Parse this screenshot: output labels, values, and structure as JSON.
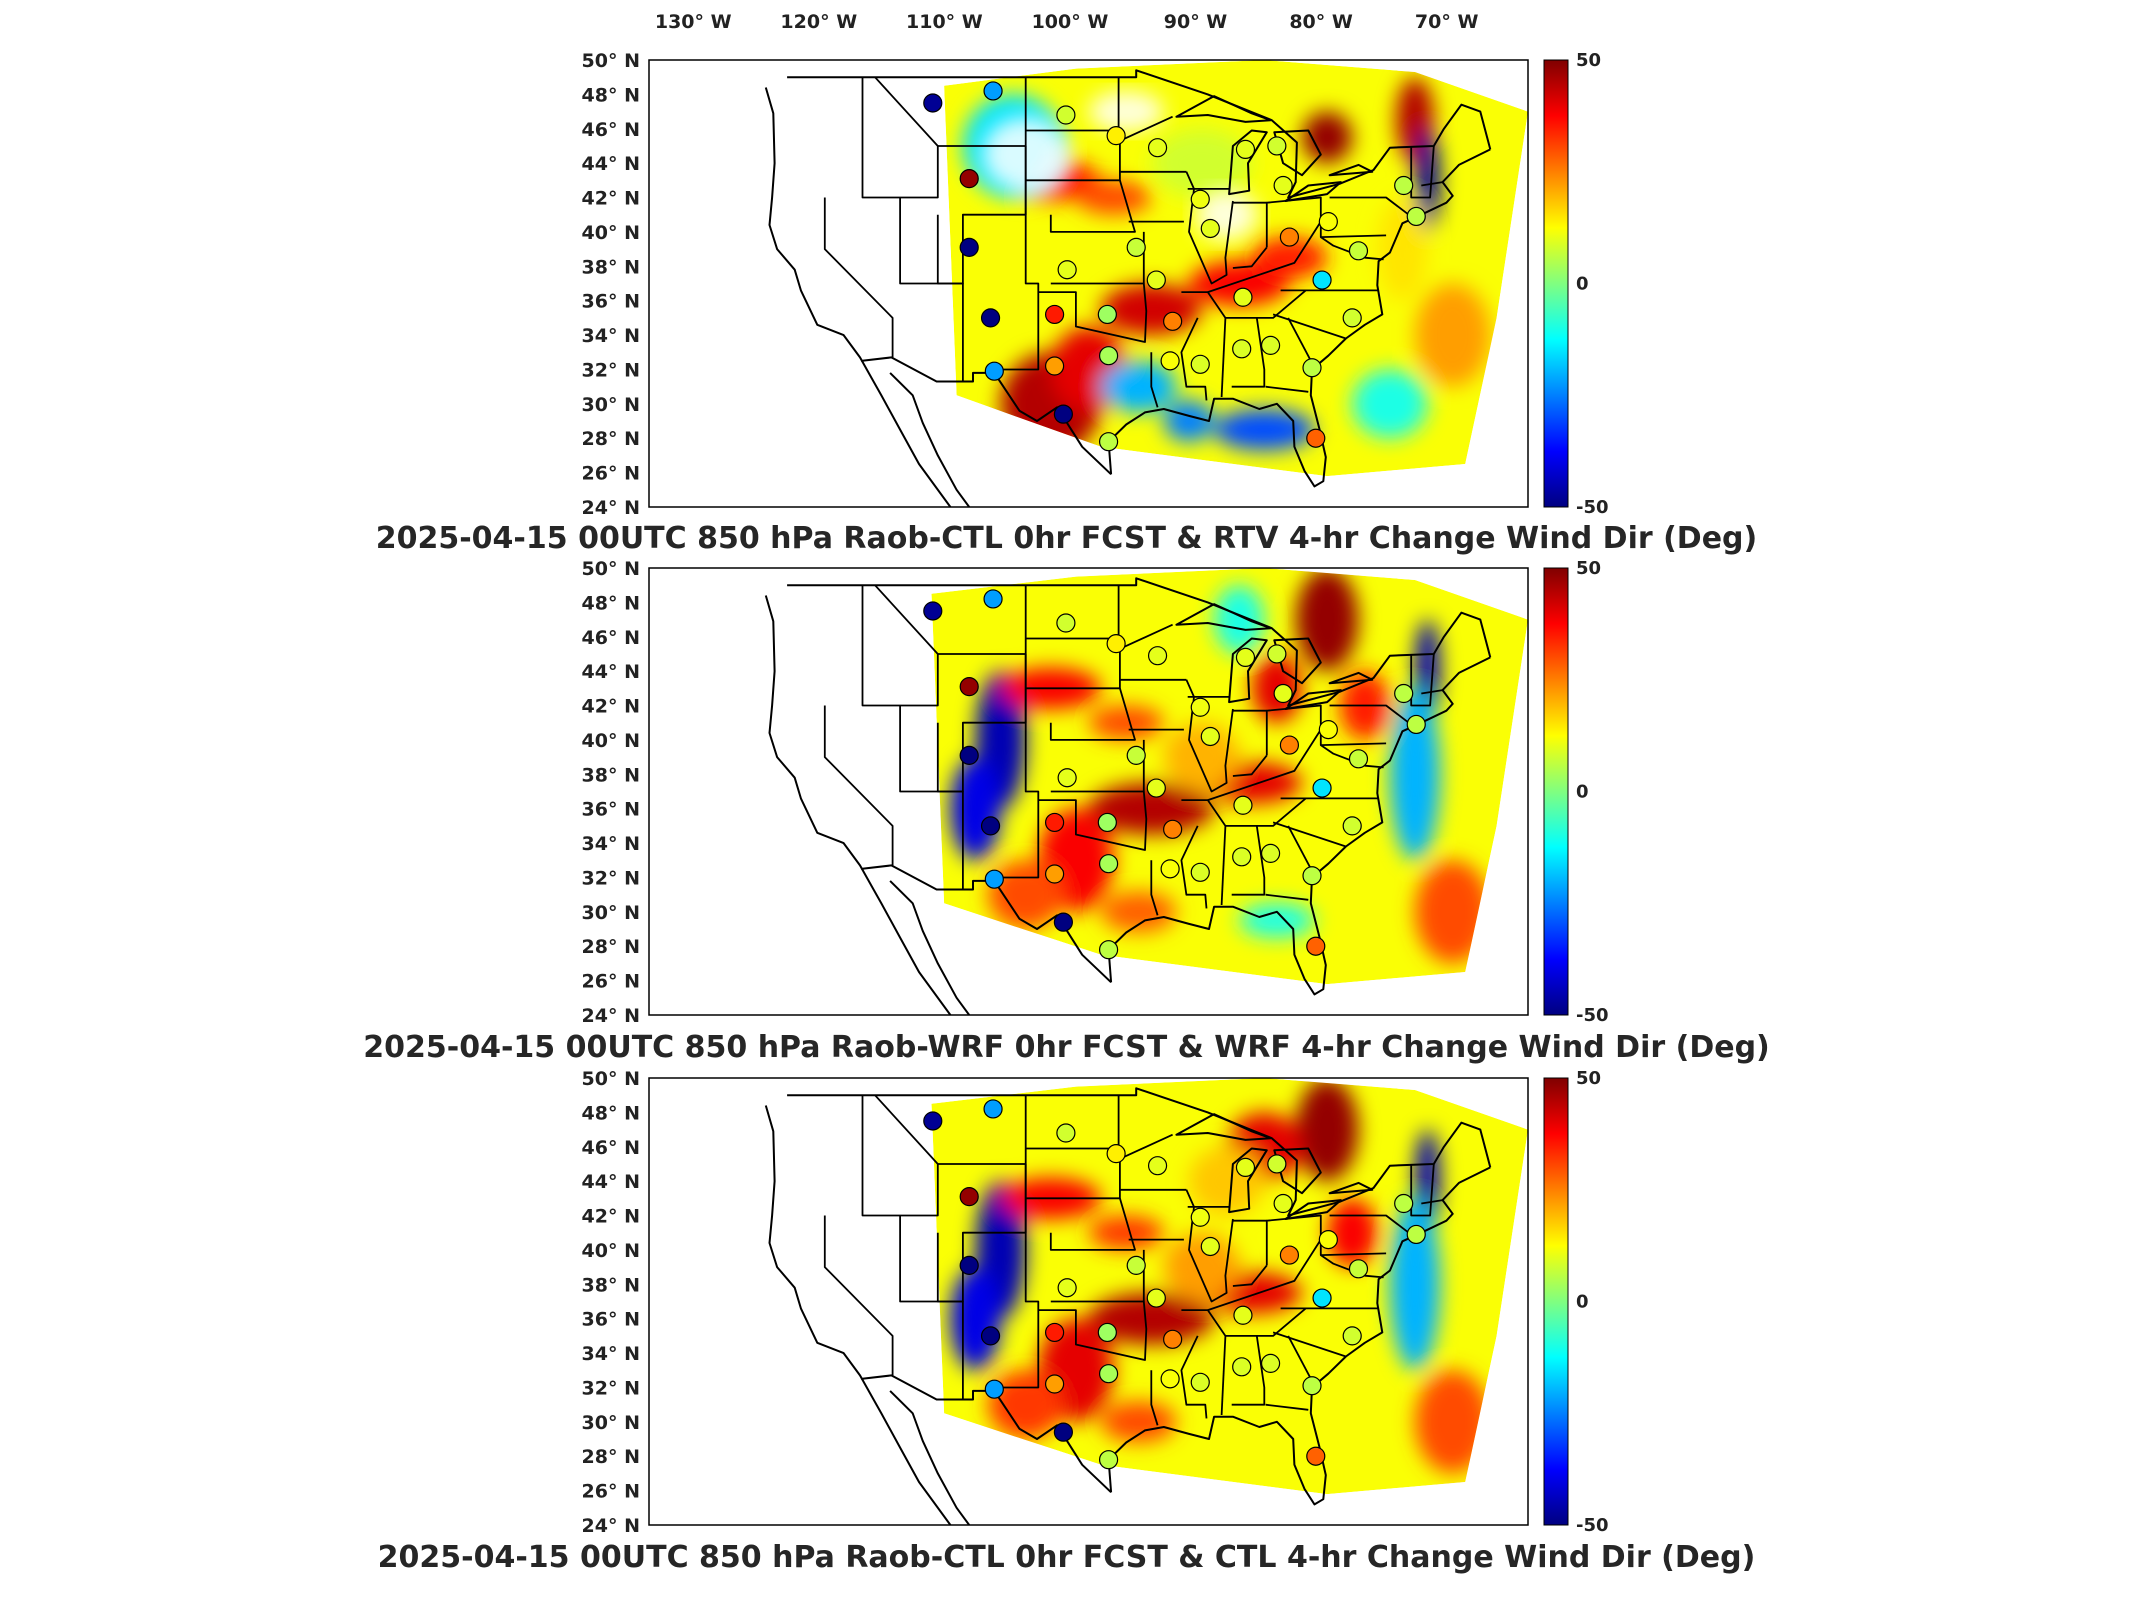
{
  "top_lon_labels": [
    "130° W",
    "120° W",
    "110° W",
    "100° W",
    "90° W",
    "80° W",
    "70° W"
  ],
  "lat_labels": [
    "50° N",
    "48° N",
    "46° N",
    "44° N",
    "42° N",
    "40° N",
    "38° N",
    "36° N",
    "34° N",
    "32° N",
    "30° N",
    "28° N",
    "26° N",
    "24° N"
  ],
  "colorbar": {
    "max_label": "50",
    "mid_label": "0",
    "min_label": "-50",
    "colormap": "jet"
  },
  "panels": [
    {
      "title": "2025-04-15 00UTC 850 hPa Raob-CTL 0hr FCST & RTV 4-hr Change Wind Dir (Deg)"
    },
    {
      "title": "2025-04-15 00UTC 850 hPa Raob-WRF 0hr FCST & WRF 4-hr Change Wind Dir (Deg)"
    },
    {
      "title": "2025-04-15 00UTC 850 hPa Raob-CTL 0hr FCST & CTL 4-hr Change Wind Dir (Deg)"
    }
  ],
  "chart_data": {
    "type": "map",
    "map_extent": {
      "lon": [
        -134,
        -64
      ],
      "lat": [
        24,
        50
      ]
    },
    "value_range": [
      -50,
      50
    ],
    "stations": [
      {
        "lon": -111.4,
        "lat": 47.5,
        "panels": [
          -48,
          -48,
          -48
        ]
      },
      {
        "lon": -106.6,
        "lat": 48.2,
        "panels": [
          -22,
          -22,
          -22
        ]
      },
      {
        "lon": -108.5,
        "lat": 43.1,
        "panels": [
          48,
          48,
          48
        ]
      },
      {
        "lon": -108.5,
        "lat": 39.1,
        "panels": [
          -50,
          -50,
          -50
        ]
      },
      {
        "lon": -106.8,
        "lat": 35.0,
        "panels": [
          -50,
          -50,
          -50
        ]
      },
      {
        "lon": -106.5,
        "lat": 31.9,
        "panels": [
          -22,
          -22,
          -22
        ]
      },
      {
        "lon": -101.0,
        "lat": 29.4,
        "panels": [
          -50,
          -50,
          -50
        ]
      },
      {
        "lon": -101.7,
        "lat": 32.2,
        "panels": [
          22,
          22,
          22
        ]
      },
      {
        "lon": -101.7,
        "lat": 35.2,
        "panels": [
          35,
          35,
          35
        ]
      },
      {
        "lon": -97.5,
        "lat": 35.2,
        "panels": [
          3,
          3,
          3
        ]
      },
      {
        "lon": -97.4,
        "lat": 32.8,
        "panels": [
          4,
          4,
          4
        ]
      },
      {
        "lon": -97.4,
        "lat": 27.8,
        "panels": [
          6,
          6,
          6
        ]
      },
      {
        "lon": -95.2,
        "lat": 39.1,
        "panels": [
          7,
          7,
          7
        ]
      },
      {
        "lon": -100.7,
        "lat": 37.8,
        "panels": [
          10,
          10,
          10
        ]
      },
      {
        "lon": -93.6,
        "lat": 37.2,
        "panels": [
          10,
          10,
          10
        ]
      },
      {
        "lon": -92.3,
        "lat": 34.8,
        "panels": [
          25,
          25,
          25
        ]
      },
      {
        "lon": -92.5,
        "lat": 32.5,
        "panels": [
          12,
          12,
          12
        ]
      },
      {
        "lon": -90.1,
        "lat": 32.3,
        "panels": [
          9,
          9,
          9
        ]
      },
      {
        "lon": -86.8,
        "lat": 33.2,
        "panels": [
          9,
          9,
          9
        ]
      },
      {
        "lon": -84.5,
        "lat": 33.4,
        "panels": [
          9,
          9,
          9
        ]
      },
      {
        "lon": -81.2,
        "lat": 32.1,
        "panels": [
          6,
          6,
          6
        ]
      },
      {
        "lon": -80.9,
        "lat": 28.0,
        "panels": [
          28,
          28,
          28
        ]
      },
      {
        "lon": -86.7,
        "lat": 36.2,
        "panels": [
          10,
          10,
          10
        ]
      },
      {
        "lon": -80.4,
        "lat": 37.2,
        "panels": [
          -15,
          -15,
          -15
        ]
      },
      {
        "lon": -78.0,
        "lat": 35.0,
        "panels": [
          8,
          8,
          8
        ]
      },
      {
        "lon": -77.5,
        "lat": 38.9,
        "panels": [
          7,
          7,
          7
        ]
      },
      {
        "lon": -89.3,
        "lat": 40.2,
        "panels": [
          10,
          10,
          10
        ]
      },
      {
        "lon": -83.0,
        "lat": 39.7,
        "panels": [
          25,
          25,
          25
        ]
      },
      {
        "lon": -79.9,
        "lat": 40.6,
        "panels": [
          12,
          12,
          12
        ]
      },
      {
        "lon": -73.9,
        "lat": 42.7,
        "panels": [
          6,
          6,
          6
        ]
      },
      {
        "lon": -72.9,
        "lat": 40.9,
        "panels": [
          6,
          6,
          6
        ]
      },
      {
        "lon": -83.5,
        "lat": 42.7,
        "panels": [
          10,
          10,
          10
        ]
      },
      {
        "lon": -86.5,
        "lat": 44.8,
        "panels": [
          10,
          10,
          10
        ]
      },
      {
        "lon": -84.0,
        "lat": 45.0,
        "panels": [
          8,
          8,
          8
        ]
      },
      {
        "lon": -90.1,
        "lat": 41.9,
        "panels": [
          11,
          11,
          11
        ]
      },
      {
        "lon": -93.5,
        "lat": 44.9,
        "panels": [
          10,
          10,
          10
        ]
      },
      {
        "lon": -96.8,
        "lat": 45.6,
        "panels": [
          14,
          14,
          14
        ]
      },
      {
        "lon": -100.8,
        "lat": 46.8,
        "panels": [
          8,
          8,
          8
        ]
      }
    ]
  }
}
